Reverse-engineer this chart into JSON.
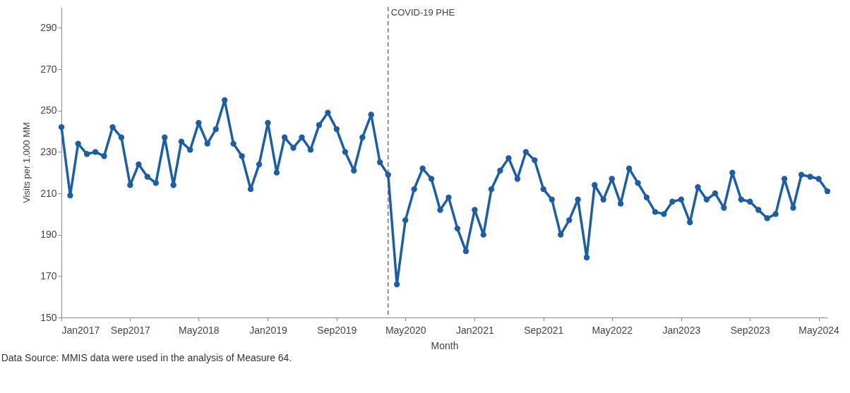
{
  "chart_data": {
    "type": "line",
    "xlabel": "Month",
    "ylabel": "Visits per 1,000 MM",
    "x": [
      "2017-01",
      "2017-02",
      "2017-03",
      "2017-04",
      "2017-05",
      "2017-06",
      "2017-07",
      "2017-08",
      "2017-09",
      "2017-10",
      "2017-11",
      "2017-12",
      "2018-01",
      "2018-02",
      "2018-03",
      "2018-04",
      "2018-05",
      "2018-06",
      "2018-07",
      "2018-08",
      "2018-09",
      "2018-10",
      "2018-11",
      "2018-12",
      "2019-01",
      "2019-02",
      "2019-03",
      "2019-04",
      "2019-05",
      "2019-06",
      "2019-07",
      "2019-08",
      "2019-09",
      "2019-10",
      "2019-11",
      "2019-12",
      "2020-01",
      "2020-02",
      "2020-03",
      "2020-04",
      "2020-05",
      "2020-06",
      "2020-07",
      "2020-08",
      "2020-09",
      "2020-10",
      "2020-11",
      "2020-12",
      "2021-01",
      "2021-02",
      "2021-03",
      "2021-04",
      "2021-05",
      "2021-06",
      "2021-07",
      "2021-08",
      "2021-09",
      "2021-10",
      "2021-11",
      "2021-12",
      "2022-01",
      "2022-02",
      "2022-03",
      "2022-04",
      "2022-05",
      "2022-06",
      "2022-07",
      "2022-08",
      "2022-09",
      "2022-10",
      "2022-11",
      "2022-12",
      "2023-01",
      "2023-02",
      "2023-03",
      "2023-04",
      "2023-05",
      "2023-06",
      "2023-07",
      "2023-08",
      "2023-09",
      "2023-10",
      "2023-11",
      "2023-12",
      "2024-01",
      "2024-02",
      "2024-03",
      "2024-04",
      "2024-05",
      "2024-06"
    ],
    "series": [
      {
        "color": "#1a5ea8",
        "values": [
          242,
          209,
          234,
          229,
          230,
          228,
          242,
          237,
          214,
          224,
          218,
          215,
          237,
          214,
          235,
          231,
          244,
          234,
          241,
          255,
          234,
          228,
          212,
          224,
          244,
          220,
          237,
          232,
          237,
          231,
          243,
          249,
          241,
          230,
          221,
          237,
          248,
          225,
          219,
          166,
          197,
          212,
          222,
          217,
          202,
          208,
          193,
          182,
          202,
          190,
          212,
          221,
          227,
          217,
          230,
          226,
          212,
          207,
          190,
          197,
          207,
          179,
          214,
          207,
          217,
          205,
          222,
          215,
          208,
          201,
          200,
          206,
          207,
          196,
          213,
          207,
          210,
          203,
          220,
          207,
          206,
          202,
          198,
          200,
          217,
          203,
          219,
          218,
          217,
          211
        ]
      }
    ],
    "xlim": [
      "2017-01",
      "2024-06"
    ],
    "xticks": [
      {
        "value": "2017-01",
        "label": "Jan2017"
      },
      {
        "value": "2017-09",
        "label": "Sep2017"
      },
      {
        "value": "2018-05",
        "label": "May2018"
      },
      {
        "value": "2019-01",
        "label": "Jan2019"
      },
      {
        "value": "2019-09",
        "label": "Sep2019"
      },
      {
        "value": "2020-05",
        "label": "May2020"
      },
      {
        "value": "2021-01",
        "label": "Jan2021"
      },
      {
        "value": "2021-09",
        "label": "Sep2021"
      },
      {
        "value": "2022-05",
        "label": "May2022"
      },
      {
        "value": "2023-01",
        "label": "Jan2023"
      },
      {
        "value": "2023-09",
        "label": "Sep2023"
      },
      {
        "value": "2024-05",
        "label": "May2024"
      }
    ],
    "ylim": [
      150,
      300
    ],
    "yticks": [
      150,
      170,
      190,
      210,
      230,
      250,
      270,
      290
    ],
    "ref_lines": [
      {
        "axis": "x",
        "value": "2020-03",
        "label": "COVID-19 PHE",
        "color": "#555555",
        "line_style": "dashed"
      }
    ],
    "annotations": [
      "Data Source: MMIS data were used in the analysis of Measure 64."
    ],
    "grid": false,
    "marker": "circle",
    "line_style": "solid"
  }
}
